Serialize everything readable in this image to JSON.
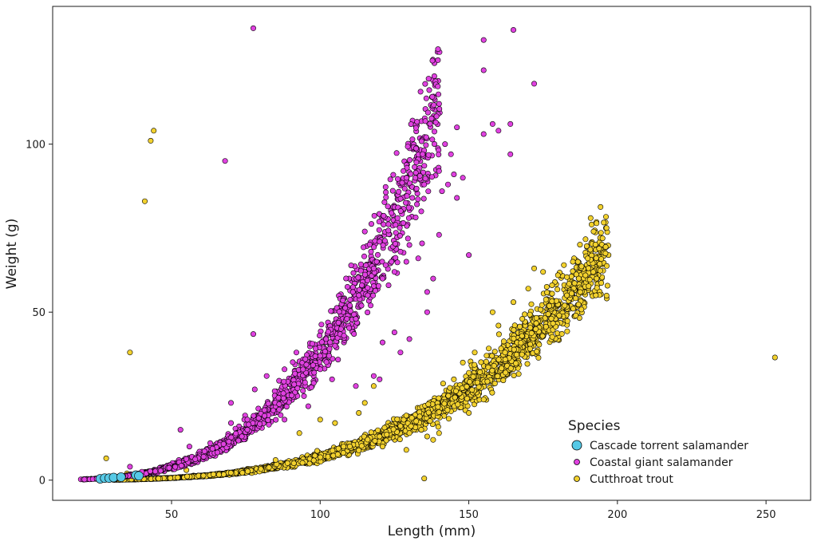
{
  "chart_data": {
    "type": "scatter",
    "xlabel": "Length (mm)",
    "ylabel": "Weight (g)",
    "xlim": [
      10,
      265
    ],
    "ylim": [
      -6,
      141
    ],
    "x_ticks": [
      50,
      100,
      150,
      200,
      250
    ],
    "y_ticks": [
      0,
      50,
      100
    ],
    "grid": false,
    "legend": {
      "title": "Species",
      "placement": "bottom-right",
      "entries": [
        "Cascade torrent salamander",
        "Coastal giant salamander",
        "Cutthroat trout"
      ]
    },
    "series": [
      {
        "name": "Cascade torrent salamander",
        "color": "#56c9e6",
        "points": [
          [
            26,
            0.4
          ],
          [
            27.5,
            0.6
          ],
          [
            29,
            0.6
          ],
          [
            30.5,
            0.8
          ],
          [
            33,
            0.9
          ],
          [
            38,
            1.5
          ],
          [
            39,
            1.3
          ]
        ]
      },
      {
        "name": "Coastal giant salamander",
        "color": "#e041e0",
        "trend": {
          "a": 1.2e-05,
          "b": 3.25,
          "xmin": 20,
          "xmax": 140,
          "n": 1400
        },
        "points": [
          [
            77.5,
            134.5
          ],
          [
            68,
            95
          ],
          [
            77.5,
            43.5
          ],
          [
            36,
            4
          ],
          [
            40,
            2.5
          ],
          [
            53,
            15
          ],
          [
            56,
            10
          ],
          [
            63,
            11
          ],
          [
            70,
            17
          ],
          [
            70,
            23
          ],
          [
            78,
            27
          ],
          [
            82,
            31
          ],
          [
            88,
            33
          ],
          [
            92,
            38
          ],
          [
            95,
            36
          ],
          [
            98,
            32
          ],
          [
            100,
            33
          ],
          [
            100,
            37
          ],
          [
            102,
            42
          ],
          [
            103,
            37
          ],
          [
            105,
            40
          ],
          [
            107,
            45
          ],
          [
            108,
            43
          ],
          [
            109,
            48
          ],
          [
            110,
            52
          ],
          [
            111,
            56
          ],
          [
            112,
            48
          ],
          [
            113,
            55
          ],
          [
            114,
            58
          ],
          [
            115,
            74
          ],
          [
            116,
            55
          ],
          [
            117,
            52
          ],
          [
            118,
            63
          ],
          [
            119,
            65
          ],
          [
            120,
            71
          ],
          [
            121,
            60
          ],
          [
            122,
            64
          ],
          [
            123,
            58
          ],
          [
            124,
            65
          ],
          [
            125,
            62
          ],
          [
            126,
            78
          ],
          [
            127,
            68
          ],
          [
            128,
            92
          ],
          [
            129,
            65
          ],
          [
            130,
            70
          ],
          [
            131,
            84
          ],
          [
            132,
            90
          ],
          [
            133,
            66
          ],
          [
            134,
            80
          ],
          [
            135,
            88
          ],
          [
            136,
            50
          ],
          [
            136,
            56
          ],
          [
            138,
            60
          ],
          [
            140,
            92
          ],
          [
            140,
            112
          ],
          [
            140,
            73
          ],
          [
            141,
            86
          ],
          [
            142,
            100
          ],
          [
            143,
            88
          ],
          [
            144,
            97
          ],
          [
            145,
            91
          ],
          [
            146,
            105
          ],
          [
            146,
            84
          ],
          [
            148,
            90
          ],
          [
            150,
            67
          ],
          [
            155,
            103
          ],
          [
            155,
            122
          ],
          [
            155,
            131
          ],
          [
            158,
            106
          ],
          [
            160,
            104
          ],
          [
            164,
            97
          ],
          [
            164,
            106
          ],
          [
            165,
            134
          ],
          [
            172,
            118
          ],
          [
            112,
            28
          ],
          [
            118,
            31
          ],
          [
            120,
            30
          ],
          [
            127,
            38
          ],
          [
            130,
            42
          ],
          [
            121,
            41
          ],
          [
            125,
            44
          ],
          [
            104,
            30
          ],
          [
            96,
            22
          ],
          [
            88,
            18
          ]
        ]
      },
      {
        "name": "Cutthroat trout",
        "color": "#f2d12e",
        "trend": {
          "a": 1.1e-06,
          "b": 3.4,
          "xmin": 30,
          "xmax": 197,
          "n": 2300
        },
        "points": [
          [
            44,
            104
          ],
          [
            43,
            101
          ],
          [
            41,
            83
          ],
          [
            36,
            38
          ],
          [
            253,
            36.5
          ],
          [
            135,
            0.5
          ],
          [
            28,
            6.5
          ],
          [
            35,
            2
          ],
          [
            55,
            3
          ],
          [
            85,
            6
          ],
          [
            100,
            18
          ],
          [
            121,
            10
          ],
          [
            129,
            9
          ],
          [
            130,
            14
          ],
          [
            134,
            15
          ],
          [
            136,
            13
          ],
          [
            138,
            12
          ],
          [
            140,
            14
          ],
          [
            150,
            20
          ],
          [
            155,
            24
          ],
          [
            180,
            61
          ],
          [
            182,
            64
          ],
          [
            185,
            65
          ],
          [
            187,
            60
          ],
          [
            190,
            66
          ],
          [
            191,
            78
          ],
          [
            192,
            74
          ],
          [
            193,
            60
          ],
          [
            195,
            72
          ],
          [
            197,
            67
          ],
          [
            196,
            67.5
          ],
          [
            183,
            55
          ],
          [
            186,
            49
          ],
          [
            170,
            57
          ],
          [
            172,
            63
          ],
          [
            175,
            62
          ],
          [
            178,
            58
          ],
          [
            158,
            50
          ],
          [
            160,
            46
          ],
          [
            165,
            53
          ],
          [
            168,
            48
          ],
          [
            115,
            23
          ],
          [
            113,
            20
          ],
          [
            118,
            28
          ],
          [
            105,
            17
          ],
          [
            93,
            14
          ],
          [
            110,
            10
          ],
          [
            120,
            13
          ],
          [
            145,
            30
          ],
          [
            148,
            35
          ],
          [
            152,
            38
          ]
        ]
      }
    ]
  }
}
